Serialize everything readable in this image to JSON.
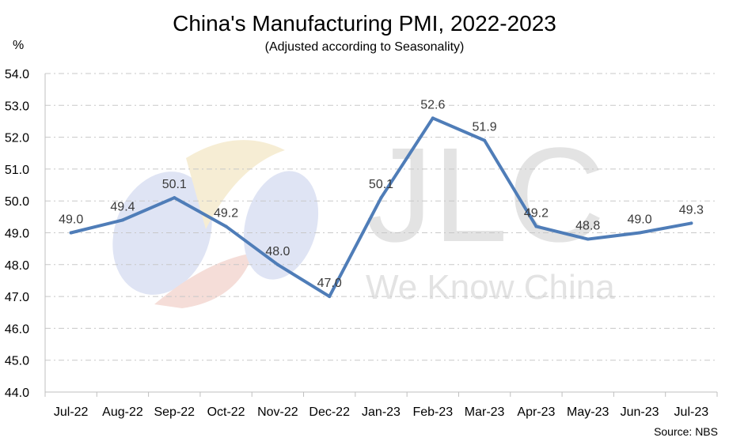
{
  "chart_data": {
    "type": "line",
    "title": "China's Manufacturing PMI, 2022-2023",
    "subtitle": "(Adjusted according to Seasonality)",
    "ylabel": "%",
    "xlabel": "",
    "source": "Source: NBS",
    "ylim": [
      44.0,
      54.0
    ],
    "yticks": [
      "44.0",
      "45.0",
      "46.0",
      "47.0",
      "48.0",
      "49.0",
      "50.0",
      "51.0",
      "52.0",
      "53.0",
      "54.0"
    ],
    "categories": [
      "Jul-22",
      "Aug-22",
      "Sep-22",
      "Oct-22",
      "Nov-22",
      "Dec-22",
      "Jan-23",
      "Feb-23",
      "Mar-23",
      "Apr-23",
      "May-23",
      "Jun-23",
      "Jul-23"
    ],
    "series": [
      {
        "values": [
          49.0,
          49.4,
          50.1,
          49.2,
          48.0,
          47.0,
          50.1,
          52.6,
          51.9,
          49.2,
          48.8,
          49.0,
          49.3
        ],
        "labels": [
          "49.0",
          "49.4",
          "50.1",
          "49.2",
          "48.0",
          "47.0",
          "50.1",
          "52.6",
          "51.9",
          "49.2",
          "48.8",
          "49.0",
          "49.3"
        ],
        "color": "#4f7db8"
      }
    ],
    "grid": true,
    "legend": "none"
  },
  "watermark": {
    "text_large": "JLC",
    "text_small": "We Know China",
    "colors": [
      "#dde3f3",
      "#f6ecd2",
      "#f5dcd6",
      "#dcdcdc"
    ]
  }
}
